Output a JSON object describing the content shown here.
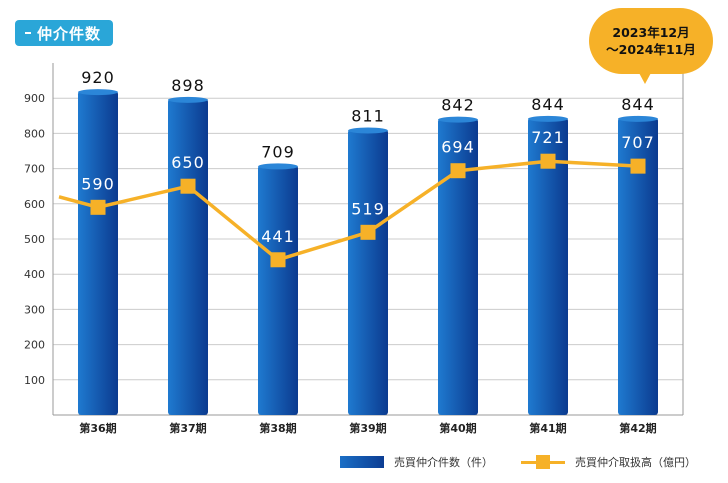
{
  "header": {
    "title": "仲介件数"
  },
  "callout": {
    "line1": "2023年12月",
    "line2": "～2024年11月"
  },
  "legend": {
    "bar_label": "売買仲介件数（件）",
    "line_label": "売買仲介取扱高（億円）"
  },
  "colors": {
    "bar_light": "#1f7ad0",
    "bar_dark": "#0b3a8f",
    "line": "#f6b128",
    "grid": "#cccccc",
    "badge": "#2aa6d8"
  },
  "chart_data": {
    "type": "bar",
    "title": "仲介件数",
    "categories": [
      "第36期",
      "第37期",
      "第38期",
      "第39期",
      "第40期",
      "第41期",
      "第42期"
    ],
    "series": [
      {
        "name": "売買仲介件数（件）",
        "type": "bar",
        "values": [
          920,
          898,
          709,
          811,
          842,
          844,
          844
        ]
      },
      {
        "name": "売買仲介取扱高（億円）",
        "type": "line",
        "values": [
          590,
          650,
          441,
          519,
          694,
          721,
          707
        ],
        "start_value": 620
      }
    ],
    "yticks": [
      100,
      200,
      300,
      400,
      500,
      600,
      700,
      800,
      900
    ],
    "ylim": [
      0,
      1000
    ],
    "grid": true,
    "legend_position": "bottom-right"
  }
}
